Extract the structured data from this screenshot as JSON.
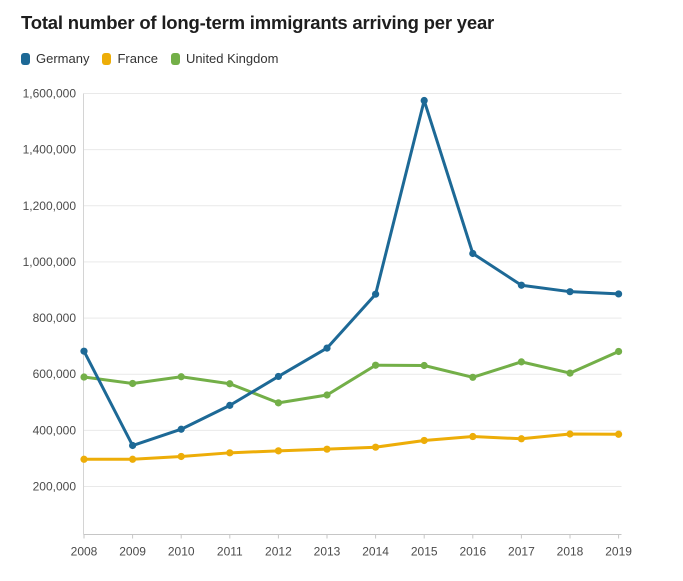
{
  "title": "Total number of long-term immigrants arriving per year",
  "legend": [
    {
      "label": "Germany",
      "color": "#1d6996"
    },
    {
      "label": "France",
      "color": "#edad08"
    },
    {
      "label": "United Kingdom",
      "color": "#73af48"
    }
  ],
  "chart_data": {
    "type": "line",
    "title": "Total number of long-term immigrants arriving per year",
    "x": [
      2008,
      2009,
      2010,
      2011,
      2012,
      2013,
      2014,
      2015,
      2016,
      2017,
      2018,
      2019
    ],
    "series": [
      {
        "name": "Germany",
        "color": "#1d6996",
        "values": [
          682000,
          346000,
          404000,
          489000,
          592000,
          693000,
          885000,
          1575000,
          1030000,
          917000,
          894000,
          886000
        ]
      },
      {
        "name": "France",
        "color": "#edad08",
        "values": [
          297000,
          297000,
          307000,
          320000,
          327000,
          333000,
          340000,
          364000,
          378000,
          370000,
          387000,
          386000
        ]
      },
      {
        "name": "United Kingdom",
        "color": "#73af48",
        "values": [
          590000,
          567000,
          591000,
          566000,
          498000,
          526000,
          632000,
          631000,
          589000,
          644000,
          604000,
          681000
        ]
      }
    ],
    "y_ticks": [
      200000,
      400000,
      600000,
      800000,
      1000000,
      1200000,
      1400000,
      1600000
    ],
    "y_tick_labels": [
      "200,000",
      "400,000",
      "600,000",
      "800,000",
      "1,000,000",
      "1,200,000",
      "1,400,000",
      "1,600,000"
    ],
    "x_tick_labels": [
      "2008",
      "2009",
      "2010",
      "2011",
      "2012",
      "2013",
      "2014",
      "2015",
      "2016",
      "2017",
      "2018",
      "2019"
    ],
    "xlim": [
      2008,
      2019
    ],
    "ylim": [
      27000,
      1600000
    ],
    "grid": "horizontal",
    "legend_position": "top-left",
    "marker": "circle"
  }
}
